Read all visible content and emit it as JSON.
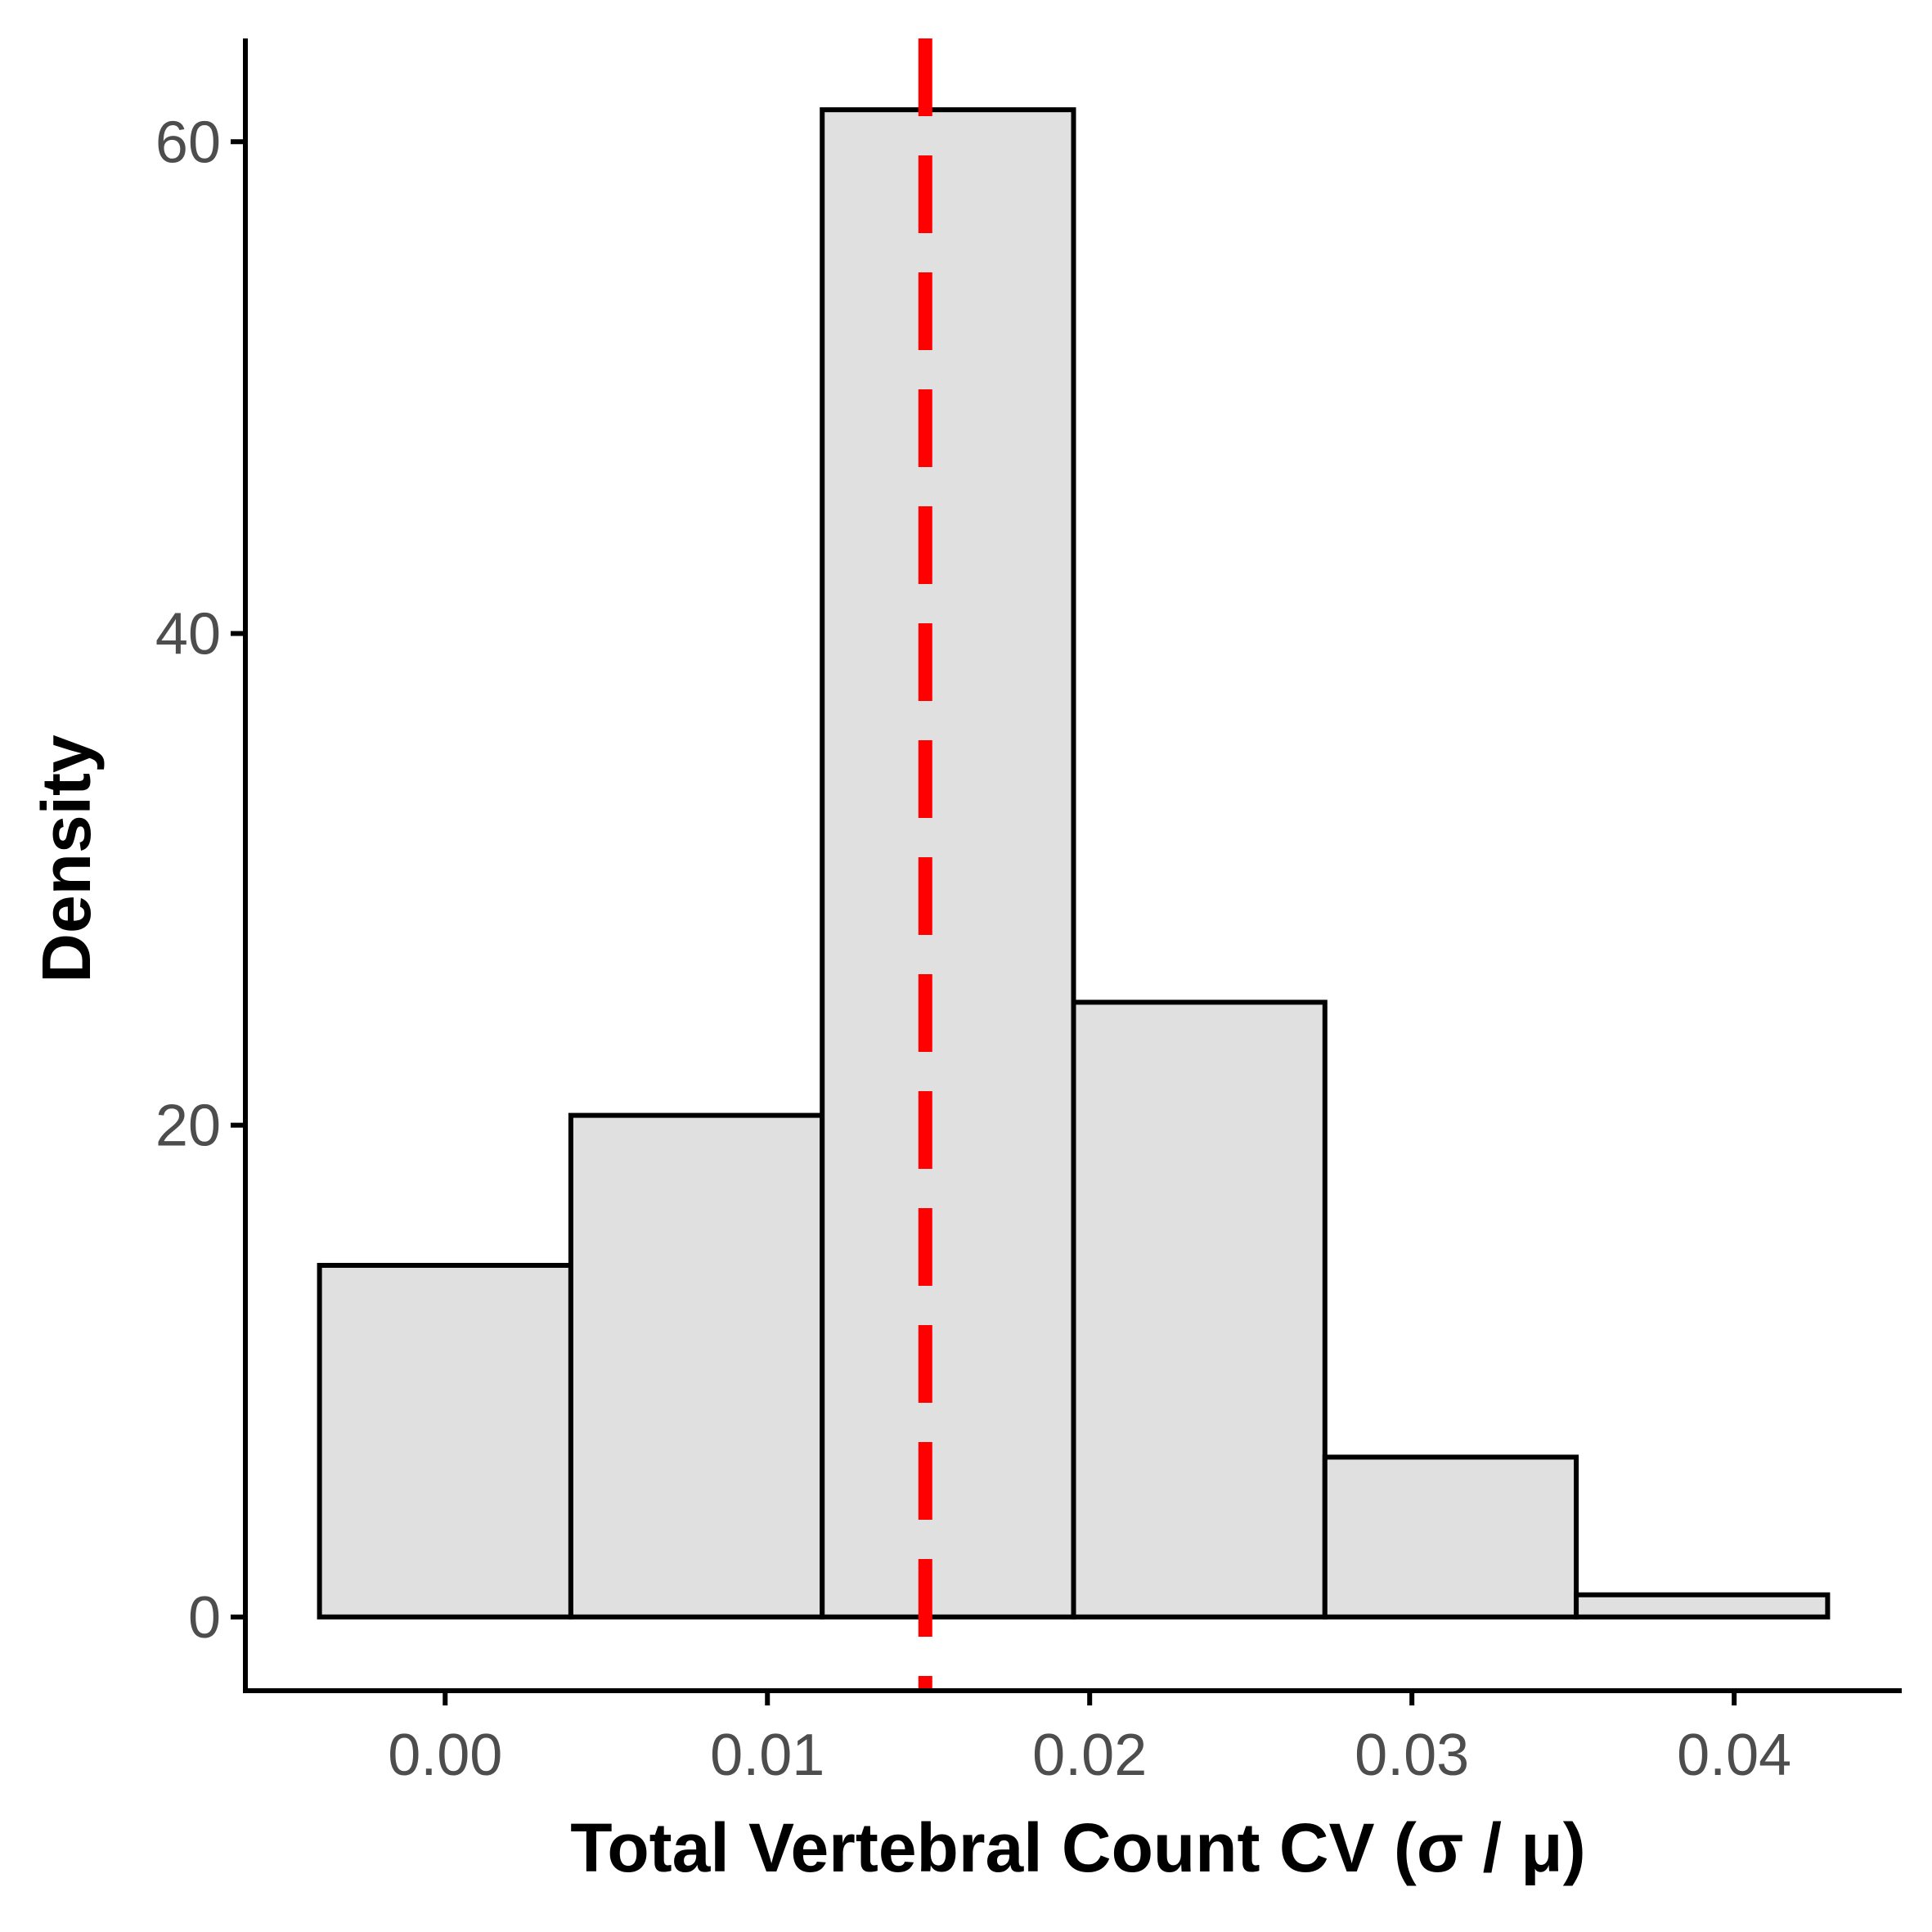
{
  "chart_data": {
    "type": "bar",
    "subtype": "histogram",
    "bins": [
      {
        "x0": -0.0039,
        "x1": 0.0039,
        "density": 14.3
      },
      {
        "x0": 0.0039,
        "x1": 0.0117,
        "density": 20.4
      },
      {
        "x0": 0.0117,
        "x1": 0.0195,
        "density": 61.3
      },
      {
        "x0": 0.0195,
        "x1": 0.0273,
        "density": 25.0
      },
      {
        "x0": 0.0273,
        "x1": 0.0351,
        "density": 6.5
      },
      {
        "x0": 0.0351,
        "x1": 0.0429,
        "density": 0.9
      }
    ],
    "reference_line": {
      "x": 0.0149,
      "color": "#ff0000",
      "style": "dashed"
    },
    "xlabel": "Total Vertebral Count CV (σ / μ)",
    "ylabel": "Density",
    "xlim": [
      -0.0062,
      0.0452
    ],
    "ylim": [
      -3.0,
      64.2
    ],
    "xticks": [
      0.0,
      0.01,
      0.02,
      0.03,
      0.04
    ],
    "xtick_labels": [
      "0.00",
      "0.01",
      "0.02",
      "0.03",
      "0.04"
    ],
    "yticks": [
      0,
      20,
      40,
      60
    ],
    "ytick_labels": [
      "0",
      "20",
      "40",
      "60"
    ],
    "grid": false,
    "legend": "none",
    "colors": {
      "bar_fill": "#e0e0e0",
      "bar_stroke": "#000000",
      "tick_text": "#4d4d4d"
    }
  }
}
